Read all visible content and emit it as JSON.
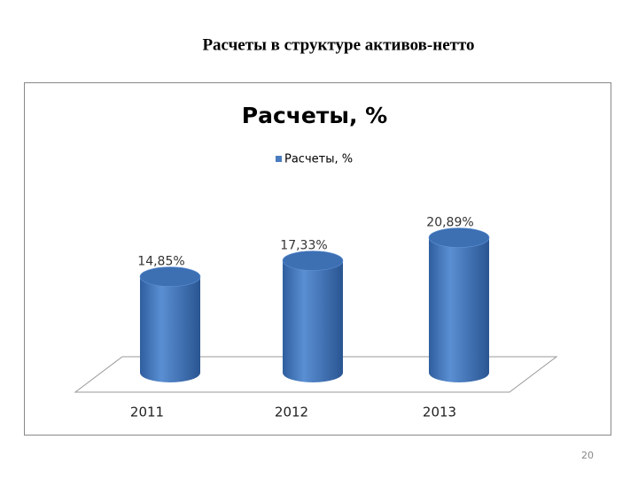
{
  "slide_title": "Расчеты в структуре активов-нетто",
  "slide_number": "20",
  "chart_data": {
    "type": "bar",
    "title": "Расчеты, %",
    "categories": [
      "2011",
      "2012",
      "2013"
    ],
    "series": [
      {
        "name": "Расчеты, %",
        "color": "#4a7cc0",
        "values": [
          14.85,
          17.33,
          20.89
        ],
        "value_labels": [
          "14,85%",
          "17,33%",
          "20,89%"
        ]
      }
    ]
  }
}
